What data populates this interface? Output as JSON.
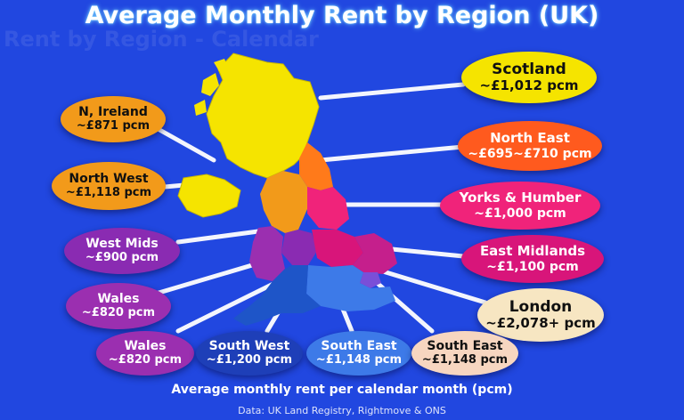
{
  "title": "Average Monthly Rent by Region (UK)",
  "footer": {
    "caption": "Average monthly rent per calendar month (pcm)",
    "source": "Data: UK Land Registry, Rightmove & ONS"
  },
  "colors": {
    "background": "#2147e0",
    "scotland": "#f5e400",
    "north_east": "#ff7a1a",
    "yorks": "#f0237a",
    "east_midlands": "#d8157a",
    "london": "#f7e6c2",
    "south_east": "#3d7ae8",
    "south_west": "#1e55c8",
    "wales": "#9b2fb0",
    "west_mids": "#8a2bb2",
    "north_west": "#f29a1a",
    "n_ireland": "#f29a1a"
  },
  "labels": [
    {
      "id": "scotland",
      "name": "Scotland",
      "value": "~£1,012 pcm"
    },
    {
      "id": "n-ireland",
      "name": "N, Ireland",
      "value": "~£871 pcm"
    },
    {
      "id": "north-east",
      "name": "North East",
      "value": "~£695~£710 pcm"
    },
    {
      "id": "north-west",
      "name": "North West",
      "value": "~£1,118 pcm"
    },
    {
      "id": "yorks-humber",
      "name": "Yorks & Humber",
      "value": "~£1,000 pcm"
    },
    {
      "id": "west-mids",
      "name": "West Mids",
      "value": "~£900 pcm"
    },
    {
      "id": "east-midlands",
      "name": "East Midlands",
      "value": "~£1,100 pcm"
    },
    {
      "id": "wales-1",
      "name": "Wales",
      "value": "~£820 pcm"
    },
    {
      "id": "london",
      "name": "London",
      "value": "~£2,078+ pcm"
    },
    {
      "id": "wales-2",
      "name": "Wales",
      "value": "~£820 pcm"
    },
    {
      "id": "south-west",
      "name": "South West",
      "value": "~£1,200 pcm"
    },
    {
      "id": "south-east-1",
      "name": "South East",
      "value": "~£1,148 pcm"
    },
    {
      "id": "south-east-2",
      "name": "South East",
      "value": "~£1,148 pcm"
    }
  ]
}
